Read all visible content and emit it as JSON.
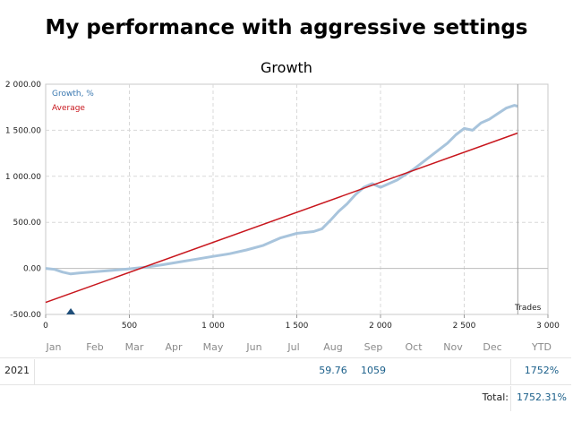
{
  "page": {
    "title": "My performance with aggressive settings"
  },
  "chart_data": {
    "type": "line",
    "title": "Growth",
    "xlabel": "Trades",
    "ylabel": "",
    "xlim": [
      0,
      3000
    ],
    "ylim": [
      -500,
      2000
    ],
    "x_ticks": [
      "0",
      "500",
      "1 000",
      "1 500",
      "2 000",
      "2 500",
      "3 000"
    ],
    "y_ticks": [
      "-500.00",
      "0.00",
      "500.00",
      "1 000.00",
      "1 500.00",
      "2 000.00"
    ],
    "grid": true,
    "legend_position": "top-left",
    "current_trade_marker_x": 2820,
    "deposit_marker_x": 150,
    "series": [
      {
        "name": "Growth, %",
        "color": "#a8c4dc",
        "points": [
          [
            0,
            0
          ],
          [
            50,
            -10
          ],
          [
            100,
            -40
          ],
          [
            150,
            -60
          ],
          [
            200,
            -50
          ],
          [
            300,
            -35
          ],
          [
            400,
            -20
          ],
          [
            500,
            -5
          ],
          [
            600,
            15
          ],
          [
            700,
            40
          ],
          [
            800,
            70
          ],
          [
            900,
            100
          ],
          [
            1000,
            130
          ],
          [
            1100,
            160
          ],
          [
            1200,
            200
          ],
          [
            1300,
            250
          ],
          [
            1400,
            330
          ],
          [
            1500,
            380
          ],
          [
            1600,
            400
          ],
          [
            1650,
            430
          ],
          [
            1700,
            520
          ],
          [
            1750,
            620
          ],
          [
            1800,
            700
          ],
          [
            1850,
            800
          ],
          [
            1900,
            880
          ],
          [
            1950,
            920
          ],
          [
            2000,
            880
          ],
          [
            2050,
            920
          ],
          [
            2100,
            960
          ],
          [
            2150,
            1020
          ],
          [
            2200,
            1080
          ],
          [
            2300,
            1220
          ],
          [
            2400,
            1360
          ],
          [
            2450,
            1450
          ],
          [
            2500,
            1520
          ],
          [
            2550,
            1500
          ],
          [
            2600,
            1580
          ],
          [
            2650,
            1620
          ],
          [
            2700,
            1680
          ],
          [
            2750,
            1740
          ],
          [
            2800,
            1770
          ],
          [
            2820,
            1760
          ]
        ]
      },
      {
        "name": "Average",
        "color": "#c8161d",
        "points": [
          [
            0,
            -370
          ],
          [
            2820,
            1470
          ]
        ]
      }
    ]
  },
  "table": {
    "months": [
      "Jan",
      "Feb",
      "Mar",
      "Apr",
      "May",
      "Jun",
      "Jul",
      "Aug",
      "Sep",
      "Oct",
      "Nov",
      "Dec"
    ],
    "ytd_label": "YTD",
    "rows": [
      {
        "year": "2021",
        "values": [
          "",
          "",
          "",
          "",
          "",
          "",
          "",
          "59.76",
          "1059",
          "",
          "",
          ""
        ],
        "ytd": "1752%"
      }
    ],
    "total_label": "Total:",
    "total_value": "1752.31%"
  }
}
